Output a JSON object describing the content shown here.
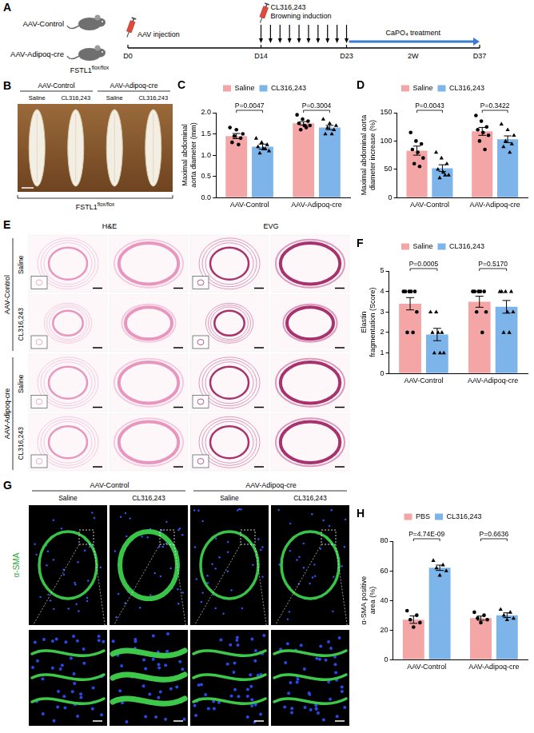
{
  "figure": {
    "A": {
      "panel": "A",
      "groups": [
        "AAV-Control",
        "AAV-Adipoq-cre"
      ],
      "genotype": {
        "base": "FSTL1",
        "sup": "flox/flox"
      },
      "timeline": {
        "days": [
          {
            "day": 0,
            "label": "D0"
          },
          {
            "day": 14,
            "label": "D14"
          },
          {
            "day": 23,
            "label": "D23"
          },
          {
            "day": 37,
            "label": "D37"
          }
        ],
        "injection": "AAV injection",
        "induction": [
          "CL316,243",
          "Browning induction"
        ],
        "treatment": "CaPO₄ treatment",
        "duration": "2W"
      }
    },
    "B": {
      "panel": "B",
      "groups": [
        "AAV-Control",
        "AAV-Adipoq-cre"
      ],
      "columns": [
        "Saline",
        "CL316,243",
        "Saline",
        "CL316,243"
      ],
      "genotype": {
        "base": "FSTL1",
        "sup": "flox/flox"
      }
    },
    "E": {
      "panel": "E",
      "stains": [
        "H&E",
        "EVG"
      ],
      "groups": [
        "AAV-Control",
        "AAV-Adipoq-cre"
      ],
      "rows": [
        "Saline",
        "CL316,243"
      ]
    },
    "G": {
      "panel": "G",
      "groups": [
        "AAV-Control",
        "AAV-Adipoq-cre"
      ],
      "columns": [
        "Saline",
        "CL316,243",
        "Saline",
        "CL316,243"
      ],
      "stain": "α-SMA"
    }
  },
  "chart_data": [
    {
      "panel": "C",
      "type": "bar",
      "ylabel": "Maximal abdominal aorta diameter (mm)",
      "categories": [
        "AAV-Control",
        "AAV-Adipoq-cre"
      ],
      "series": [
        {
          "name": "Saline",
          "color": "#f4a6a6",
          "marker": "circle",
          "values": [
            1.45,
            1.75
          ],
          "errors": [
            0.06,
            0.04
          ],
          "points": [
            [
              1.65,
              1.6,
              1.5,
              1.45,
              1.4,
              1.3,
              1.25
            ],
            [
              1.95,
              1.85,
              1.8,
              1.75,
              1.7,
              1.7,
              1.6,
              1.65
            ]
          ]
        },
        {
          "name": "CL316,243",
          "color": "#7db5ea",
          "marker": "triangle",
          "values": [
            1.2,
            1.65
          ],
          "errors": [
            0.06,
            0.05
          ],
          "points": [
            [
              1.4,
              1.3,
              1.25,
              1.2,
              1.15,
              1.1,
              1.05,
              1.15
            ],
            [
              1.85,
              1.75,
              1.7,
              1.65,
              1.6,
              1.5,
              1.5
            ]
          ]
        }
      ],
      "annotations": [
        {
          "category": "AAV-Control",
          "text": "P=0.0047"
        },
        {
          "category": "AAV-Adipoq-cre",
          "text": "P=0.3004"
        }
      ],
      "ylim": [
        0,
        2
      ],
      "yticks": [
        {
          "value": 0,
          "label": "0.0"
        },
        0.5,
        {
          "value": 1,
          "label": "1.0"
        },
        1.5,
        {
          "value": 2,
          "label": "2.0"
        }
      ],
      "grid": false,
      "legend": "top"
    },
    {
      "panel": "D",
      "type": "bar",
      "ylabel": "Maximal abdominal aorta diameter increase (%)",
      "categories": [
        "AAV-Control",
        "AAV-Adipoq-cre"
      ],
      "series": [
        {
          "name": "Saline",
          "color": "#f4a6a6",
          "marker": "circle",
          "values": [
            83,
            117
          ],
          "errors": [
            8,
            7
          ],
          "points": [
            [
              115,
              100,
              95,
              85,
              80,
              70,
              60,
              55
            ],
            [
              145,
              135,
              125,
              120,
              115,
              110,
              100,
              85
            ]
          ]
        },
        {
          "name": "CL316,243",
          "color": "#7db5ea",
          "marker": "triangle",
          "values": [
            52,
            103
          ],
          "errors": [
            6,
            6
          ],
          "points": [
            [
              80,
              70,
              60,
              50,
              45,
              40,
              35,
              40
            ],
            [
              130,
              120,
              110,
              100,
              95,
              90,
              80
            ]
          ]
        }
      ],
      "annotations": [
        {
          "category": "AAV-Control",
          "text": "P=0.0043"
        },
        {
          "category": "AAV-Adipoq-cre",
          "text": "P=0.3422"
        }
      ],
      "ylim": [
        0,
        150
      ],
      "yticks": [
        0,
        50,
        100,
        150
      ],
      "grid": false,
      "legend": "top"
    },
    {
      "panel": "F",
      "type": "bar",
      "ylabel": "Elastin fragmentation (Score)",
      "categories": [
        "AAV-Control",
        "AAV-Adipoq-cre"
      ],
      "series": [
        {
          "name": "Saline",
          "color": "#f4a6a6",
          "marker": "circle",
          "values": [
            3.4,
            3.5
          ],
          "errors": [
            0.3,
            0.27
          ],
          "points": [
            [
              4,
              4,
              4,
              4,
              4,
              3,
              2,
              2
            ],
            [
              4,
              4,
              4,
              4,
              4,
              3,
              3,
              2
            ]
          ]
        },
        {
          "name": "CL316,243",
          "color": "#7db5ea",
          "marker": "triangle",
          "values": [
            1.9,
            3.25
          ],
          "errors": [
            0.3,
            0.31
          ],
          "points": [
            [
              3,
              3,
              2,
              2,
              2,
              1,
              1,
              1
            ],
            [
              4,
              4,
              4,
              4,
              3,
              3,
              2,
              2
            ]
          ]
        }
      ],
      "annotations": [
        {
          "category": "AAV-Control",
          "text": "P=0.0005"
        },
        {
          "category": "AAV-Adipoq-cre",
          "text": "P=0.5170"
        }
      ],
      "ylim": [
        0,
        5
      ],
      "yticks": [
        0,
        1,
        2,
        3,
        4,
        5
      ],
      "grid": false,
      "legend": "top"
    },
    {
      "panel": "H",
      "type": "bar",
      "ylabel": "α-SMA positive area (%)",
      "categories": [
        "AAV-Control",
        "AAV-Adipoq-cre"
      ],
      "series": [
        {
          "name": "PBS",
          "color": "#f4a6a6",
          "marker": "circle",
          "values": [
            27,
            28
          ],
          "errors": [
            2.5,
            1.4
          ],
          "points": [
            [
              33,
              30,
              27,
              25,
              22
            ],
            [
              32,
              30,
              28,
              27,
              25
            ]
          ]
        },
        {
          "name": "CL316,243",
          "color": "#7db5ea",
          "marker": "triangle",
          "values": [
            62,
            30
          ],
          "errors": [
            1.8,
            1.6
          ],
          "points": [
            [
              67,
              64,
              62,
              60,
              57
            ],
            [
              34,
              32,
              30,
              28,
              27
            ]
          ]
        }
      ],
      "annotations": [
        {
          "category": "AAV-Control",
          "text": "P=4.74E-09"
        },
        {
          "category": "AAV-Adipoq-cre",
          "text": "P=0.6636"
        }
      ],
      "ylim": [
        0,
        80
      ],
      "yticks": [
        0,
        20,
        40,
        60,
        80
      ],
      "grid": false,
      "legend": "top"
    }
  ]
}
